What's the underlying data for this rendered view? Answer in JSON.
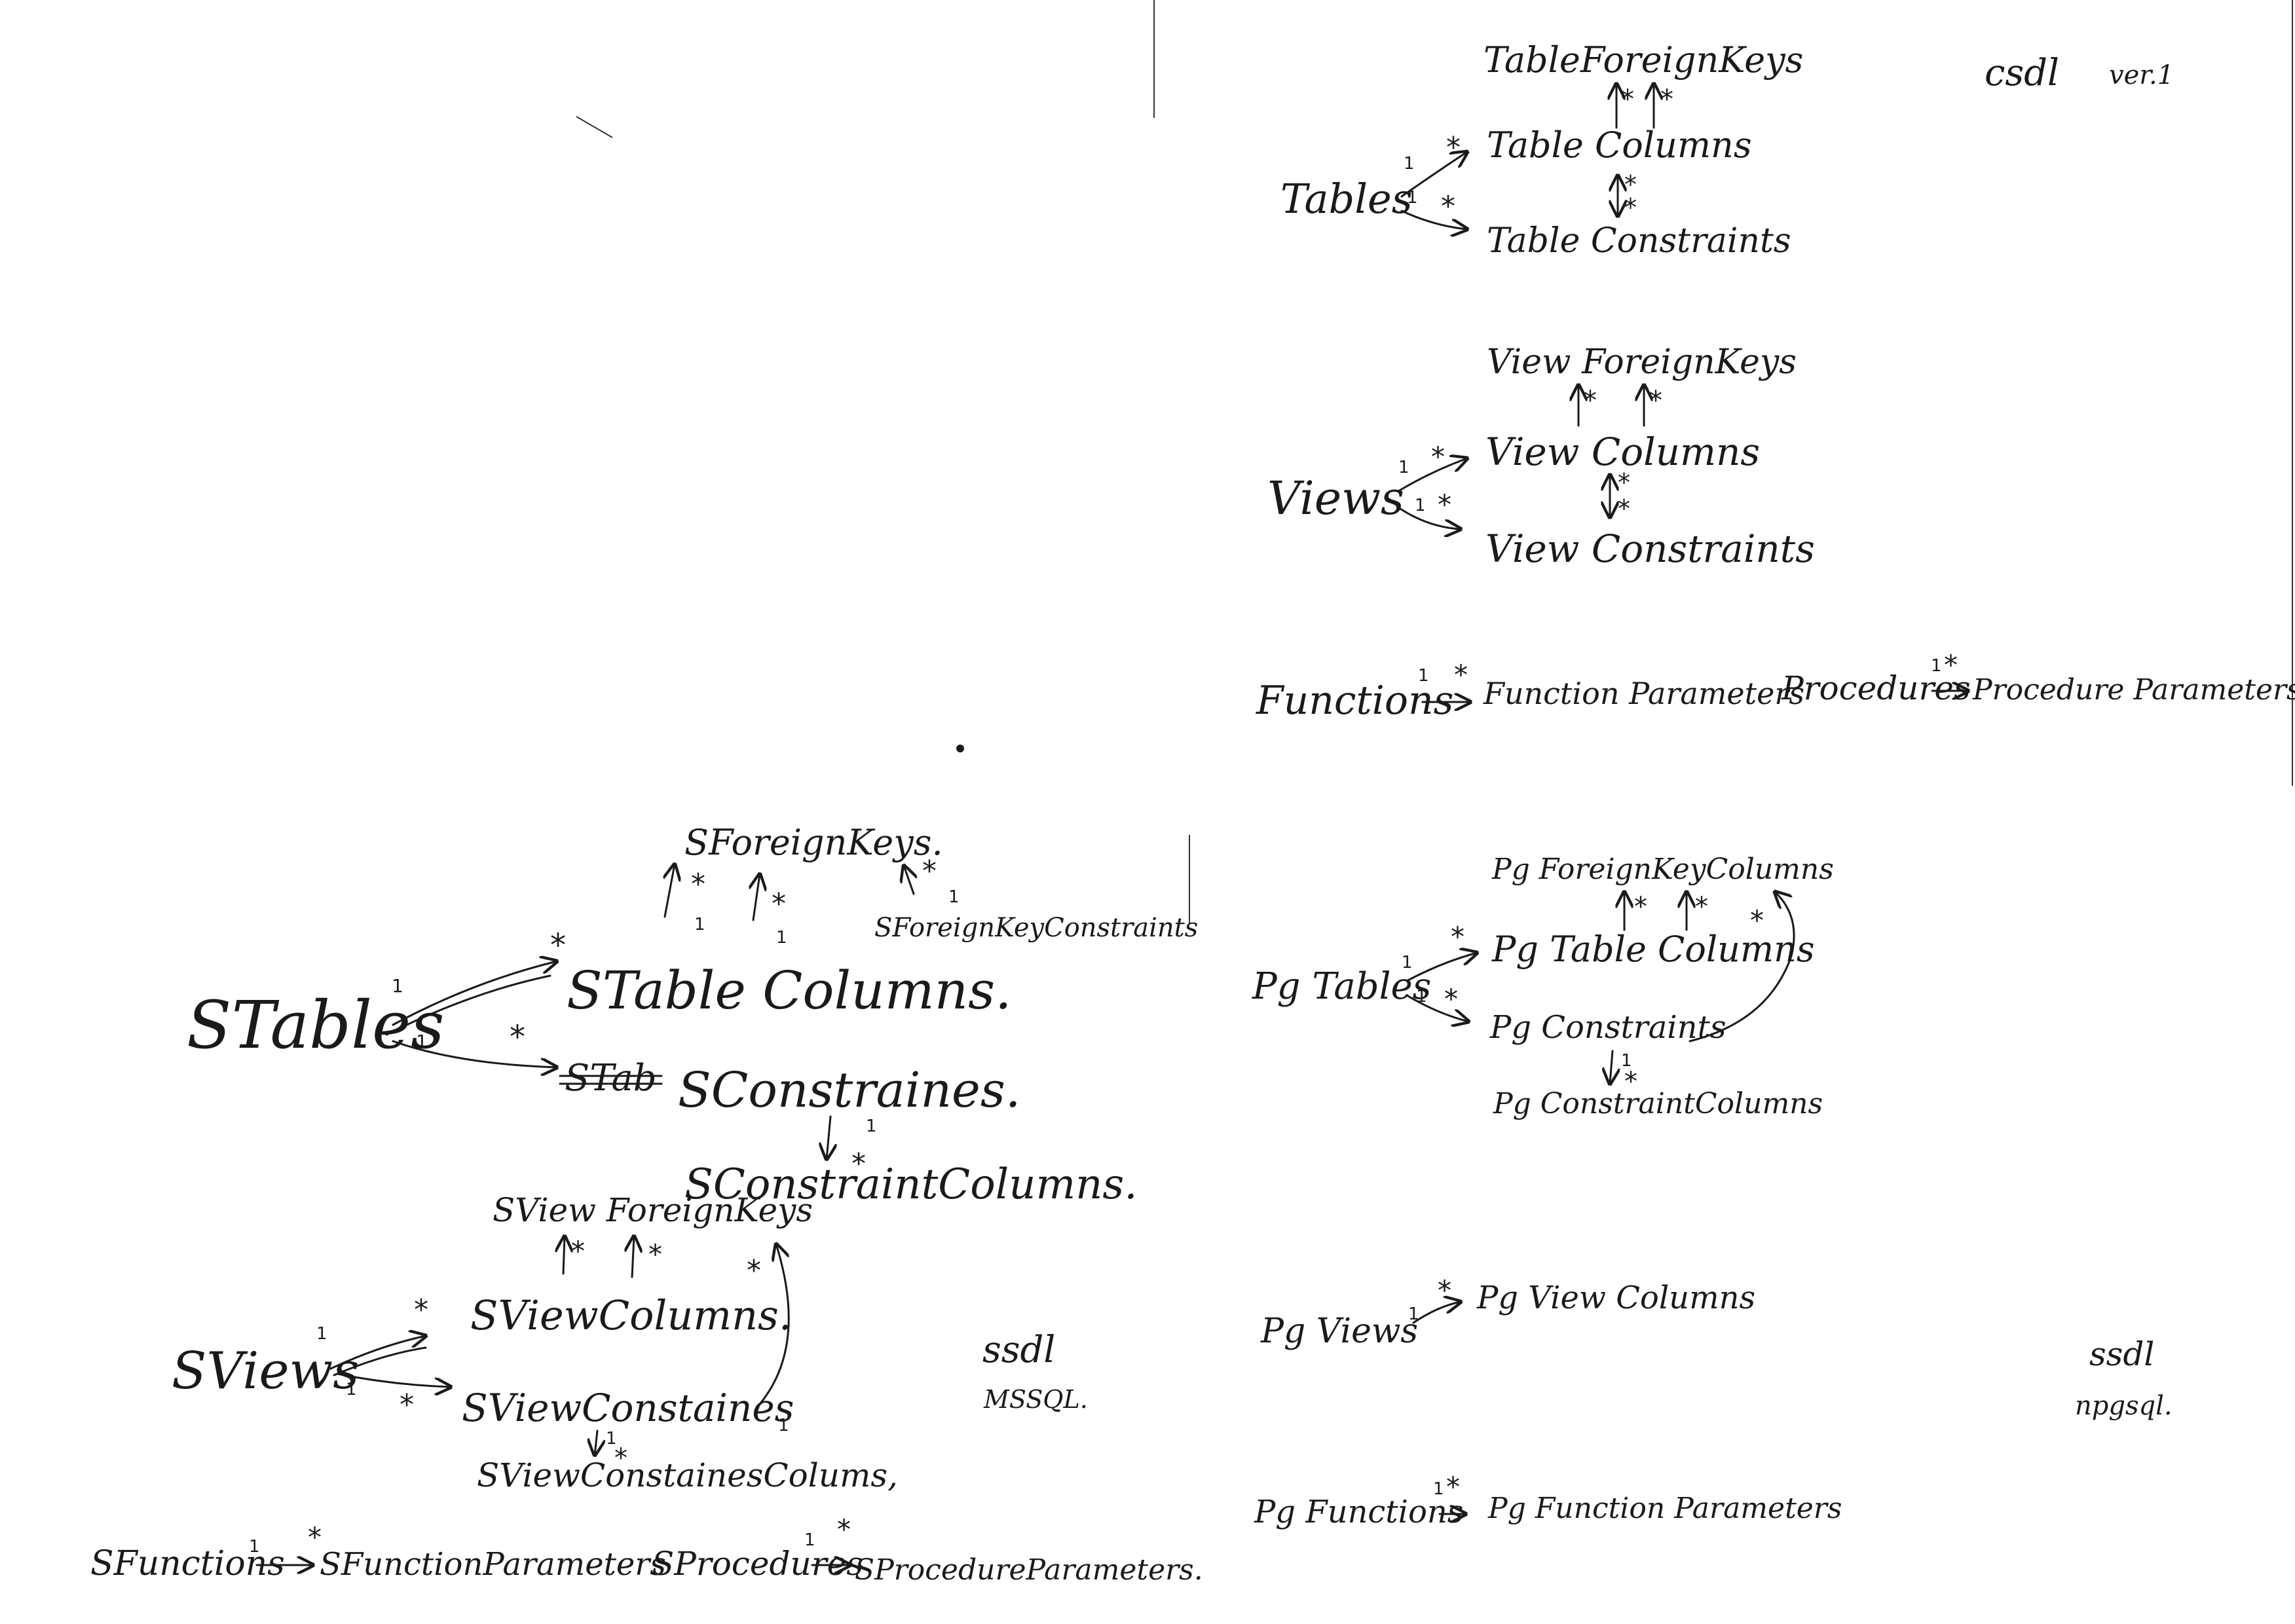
{
  "labels": {
    "csdl_title": "csdl",
    "version": "ver.1",
    "ssdl_mssql_title": "ssdl",
    "ssdl_mssql_sub": "MSSQL.",
    "ssdl_npgsql_title": "ssdl",
    "ssdl_npgsql_sub": "npgsql."
  },
  "csdl": {
    "tables": "Tables",
    "table_foreign_keys": "TableForeignKeys",
    "table_columns": "Table Columns",
    "table_constraints": "Table Constraints",
    "views": "Views",
    "view_foreign_keys": "View ForeignKeys",
    "view_columns": "View Columns",
    "view_constraints": "View Constraints",
    "functions": "Functions",
    "function_parameters": "Function Parameters",
    "procedures": "Procedures",
    "procedure_parameters": "Procedure Parameters."
  },
  "mssql": {
    "tables": "STables",
    "foreign_keys": "SForeignKeys.",
    "foreign_key_constraints": "SForeignKeyConstraints",
    "table_columns": "STable Columns.",
    "constraints_struck": "STab",
    "constraints": "SConstraines.",
    "constraint_columns": "SConstraintColumns.",
    "views": "SViews",
    "view_foreign_keys": "SView ForeignKeys",
    "view_columns": "SViewColumns.",
    "view_constraints": "SViewConstaines",
    "view_constraint_columns": "SViewConstainesColums,",
    "functions": "SFunctions",
    "function_parameters": "SFunctionParameters",
    "procedures": "SProcedures",
    "procedure_parameters": "SProcedureParameters."
  },
  "npgsql": {
    "tables": "Pg Tables",
    "foreign_key_columns": "Pg ForeignKeyColumns",
    "table_columns": "Pg Table Columns",
    "constraints": "Pg Constraints",
    "constraint_columns": "Pg ConstraintColumns",
    "views": "Pg Views",
    "view_columns": "Pg View Columns",
    "functions": "Pg Functions",
    "function_parameters": "Pg Function Parameters"
  },
  "cardinality": {
    "one": "1",
    "many": "*"
  },
  "colors": {
    "ink": "#1a1a1a",
    "paper": "#ffffff"
  }
}
